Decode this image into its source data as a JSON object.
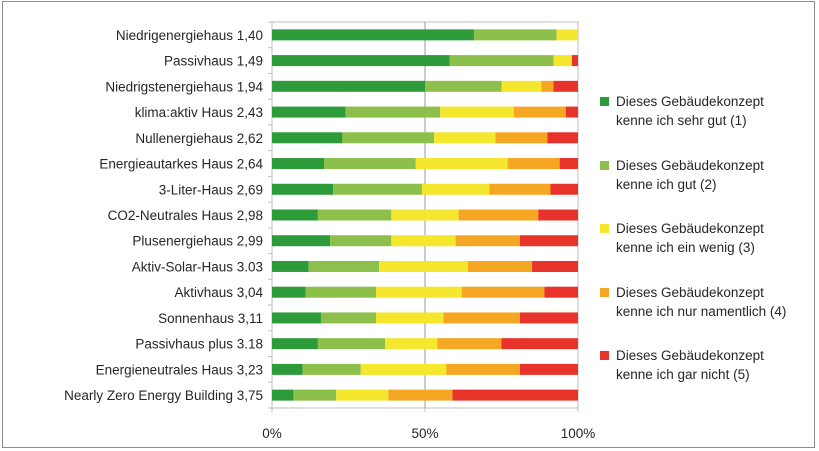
{
  "chart_data": {
    "type": "bar",
    "orientation": "horizontal",
    "stacked": "percent",
    "categories": [
      "Niedrigenergiehaus 1,40",
      "Passivhaus 1,49",
      "Niedrigstenergiehaus 1,94",
      "klima:aktiv Haus 2,43",
      "Nullenergiehaus 2,62",
      "Energieautarkes Haus 2,64",
      "3-Liter-Haus 2,69",
      "CO2-Neutrales Haus 2,98",
      "Plusenergiehaus 2,99",
      "Aktiv-Solar-Haus 3.03",
      "Aktivhaus 3,04",
      "Sonnenhaus 3,11",
      "Passivhaus plus 3.18",
      "Energieneutrales Haus 3,23",
      "Nearly Zero Energy Building 3,75"
    ],
    "series": [
      {
        "name": "Dieses Gebäudekonzept kenne ich sehr gut (1)",
        "color": "#2e9b3a",
        "values": [
          66,
          58,
          50,
          24,
          23,
          17,
          20,
          15,
          19,
          12,
          11,
          16,
          15,
          10,
          7
        ]
      },
      {
        "name": "Dieses Gebäudekonzept kenne ich gut (2)",
        "color": "#8dc04b",
        "values": [
          27,
          34,
          25,
          31,
          30,
          30,
          29,
          24,
          20,
          23,
          23,
          18,
          22,
          19,
          14
        ]
      },
      {
        "name": "Dieses Gebäudekonzept kenne ich ein wenig (3)",
        "color": "#f5e62e",
        "values": [
          7,
          6,
          13,
          24,
          20,
          30,
          22,
          22,
          21,
          29,
          28,
          22,
          17,
          28,
          17
        ]
      },
      {
        "name": "Dieses Gebäudekonzept kenne ich nur namentlich (4)",
        "color": "#f5a623",
        "values": [
          0,
          0,
          4,
          17,
          17,
          17,
          20,
          26,
          21,
          21,
          27,
          25,
          21,
          24,
          21
        ]
      },
      {
        "name": "Dieses Gebäudekonzept kenne ich gar nicht (5)",
        "color": "#e8332a",
        "values": [
          0,
          2,
          8,
          4,
          10,
          6,
          9,
          13,
          19,
          15,
          11,
          19,
          25,
          19,
          41
        ]
      }
    ],
    "xticks": [
      "0%",
      "50%",
      "100%"
    ],
    "xlim": [
      0,
      100
    ],
    "grid": "vertical at 50%",
    "legend_position": "right"
  }
}
